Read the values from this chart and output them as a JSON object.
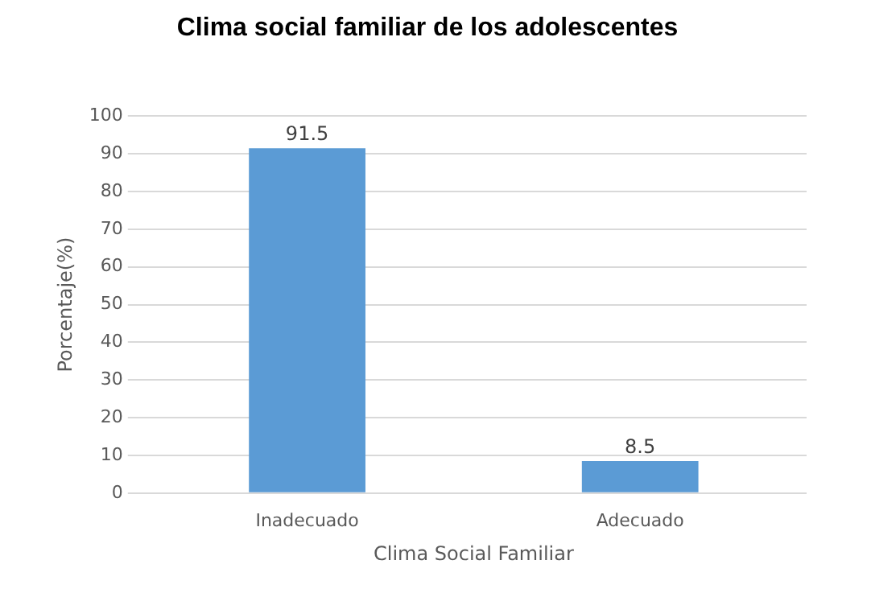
{
  "chart_data": {
    "type": "bar",
    "title": "Clima social familiar de los adolescentes",
    "xlabel": "Clima Social Familiar",
    "ylabel": "Porcentaje(%)",
    "categories": [
      "Inadecuado",
      "Adecuado"
    ],
    "values": [
      91.5,
      8.5
    ],
    "color": "#5b9bd5",
    "ylim": [
      0,
      100
    ],
    "yticks": [
      0,
      10,
      20,
      30,
      40,
      50,
      60,
      70,
      80,
      90,
      100
    ],
    "grid": "y",
    "data_labels": true,
    "legend": false
  }
}
